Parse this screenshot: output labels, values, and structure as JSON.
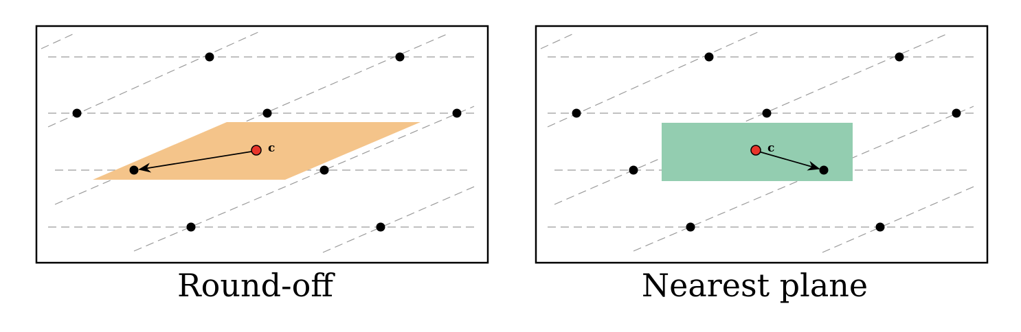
{
  "panels": [
    {
      "caption": "Round-off",
      "target_label": "c",
      "region_color": "#f4c48a",
      "region_shape": "parallelogram"
    },
    {
      "caption": "Nearest plane",
      "target_label": "c",
      "region_color": "#93cdb0",
      "region_shape": "rectangle"
    }
  ],
  "colors": {
    "lattice_point": "#000000",
    "target_point": "#e8352b",
    "grid_line": "#9a9a9a"
  }
}
